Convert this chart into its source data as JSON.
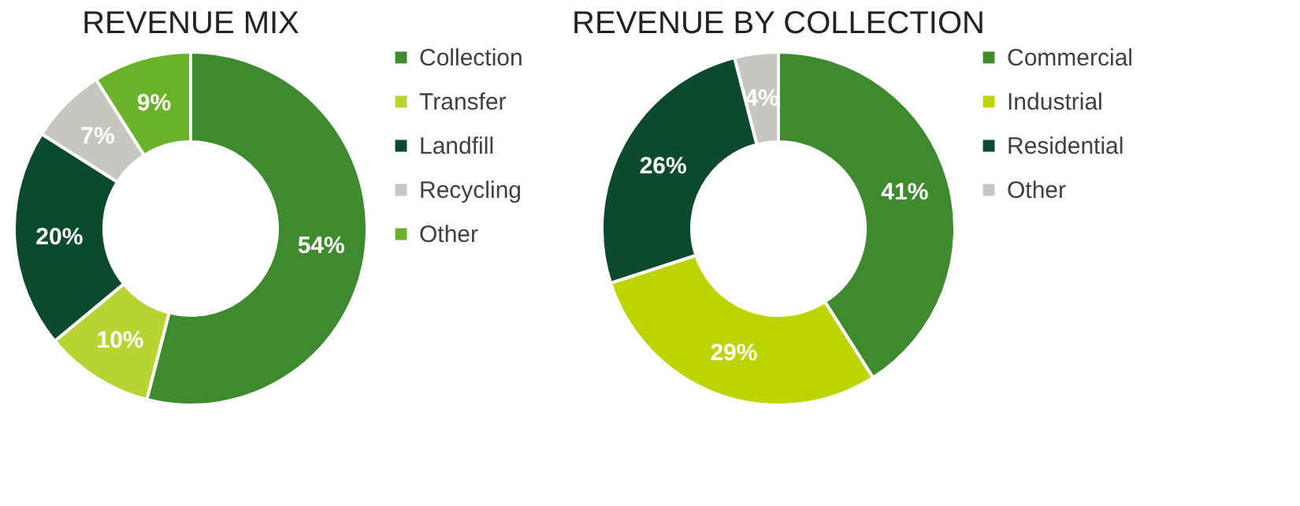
{
  "chart_data": [
    {
      "type": "donut",
      "title": "REVENUE MIX",
      "categories": [
        "Collection",
        "Transfer",
        "Landfill",
        "Recycling",
        "Other"
      ],
      "values": [
        54,
        10,
        20,
        7,
        9
      ],
      "value_labels": [
        "54%",
        "10%",
        "20%",
        "7%",
        "9%"
      ],
      "colors": [
        "#3f8a2f",
        "#b8d433",
        "#0b4a2e",
        "#c6c7c0",
        "#6ab22a"
      ],
      "legend": "right"
    },
    {
      "type": "donut",
      "title": "REVENUE BY COLLECTION",
      "categories": [
        "Commercial",
        "Industrial",
        "Residential",
        "Other"
      ],
      "values": [
        41,
        29,
        26,
        4
      ],
      "value_labels": [
        "41%",
        "29%",
        "26%",
        "4%"
      ],
      "colors": [
        "#3f8a2f",
        "#bcd500",
        "#0b4a2e",
        "#c6c7c0"
      ],
      "legend": "right"
    }
  ]
}
